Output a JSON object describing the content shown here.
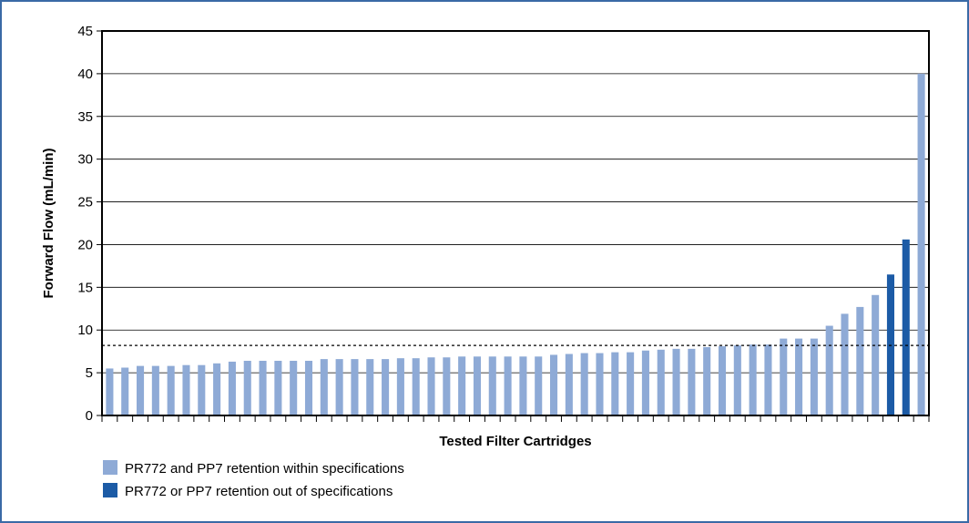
{
  "chart_data": {
    "type": "bar",
    "xlabel": "Tested Filter Cartridges",
    "ylabel": "Forward Flow (mL/min)",
    "ylim": [
      0,
      45
    ],
    "yticks": [
      0,
      5,
      10,
      15,
      20,
      25,
      30,
      35,
      40,
      45
    ],
    "grid": true,
    "reference_line": 8.2,
    "legend_position": "bottom-left",
    "colors": {
      "within": "#8eaad6",
      "out": "#1c5ba6"
    },
    "series": [
      {
        "name": "PR772 and PP7 retention within specifications",
        "key": "within"
      },
      {
        "name": "PR772 or PP7 retention out of specifications",
        "key": "out"
      }
    ],
    "values": [
      5.5,
      5.6,
      5.8,
      5.8,
      5.8,
      5.9,
      5.9,
      6.1,
      6.3,
      6.4,
      6.4,
      6.4,
      6.4,
      6.4,
      6.6,
      6.6,
      6.6,
      6.6,
      6.6,
      6.7,
      6.7,
      6.8,
      6.8,
      6.9,
      6.9,
      6.9,
      6.9,
      6.9,
      6.9,
      7.1,
      7.2,
      7.3,
      7.3,
      7.4,
      7.4,
      7.6,
      7.7,
      7.8,
      7.8,
      8.0,
      8.1,
      8.2,
      8.3,
      8.3,
      9.0,
      9.0,
      9.0,
      10.5,
      11.9,
      12.7,
      14.1,
      16.5,
      20.6,
      40.0
    ],
    "status": [
      "within",
      "within",
      "within",
      "within",
      "within",
      "within",
      "within",
      "within",
      "within",
      "within",
      "within",
      "within",
      "within",
      "within",
      "within",
      "within",
      "within",
      "within",
      "within",
      "within",
      "within",
      "within",
      "within",
      "within",
      "within",
      "within",
      "within",
      "within",
      "within",
      "within",
      "within",
      "within",
      "within",
      "within",
      "within",
      "within",
      "within",
      "within",
      "within",
      "within",
      "within",
      "within",
      "within",
      "within",
      "within",
      "within",
      "within",
      "within",
      "within",
      "within",
      "within",
      "out",
      "out",
      "within"
    ]
  }
}
